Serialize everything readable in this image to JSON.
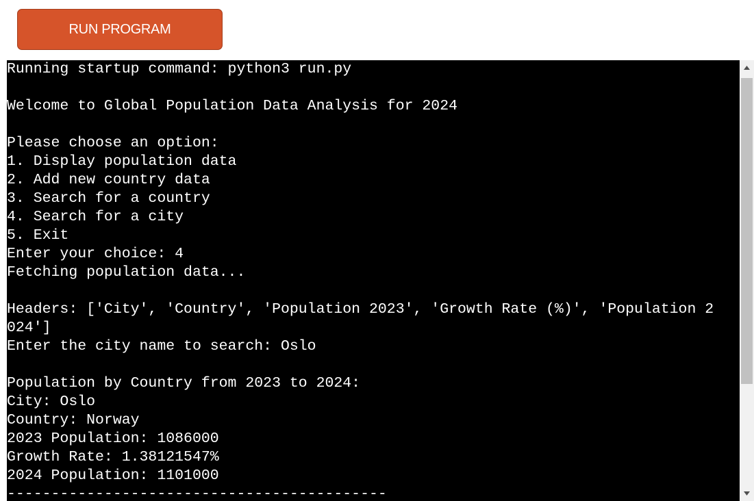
{
  "run_button": {
    "label": "RUN PROGRAM"
  },
  "terminal": {
    "lines": [
      "Running startup command: python3 run.py",
      "",
      "Welcome to Global Population Data Analysis for 2024",
      "",
      "Please choose an option:",
      "1. Display population data",
      "2. Add new country data",
      "3. Search for a country",
      "4. Search for a city",
      "5. Exit",
      "Enter your choice: 4",
      "Fetching population data...",
      "",
      "Headers: ['City', 'Country', 'Population 2023', 'Growth Rate (%)', 'Population 2",
      "024']",
      "Enter the city name to search: Oslo",
      "",
      "Population by Country from 2023 to 2024:",
      "City: Oslo",
      "Country: Norway",
      "2023 Population: 1086000",
      "Growth Rate: 1.38121547%",
      "2024 Population: 1101000",
      "-------------------------------------------"
    ]
  },
  "colors": {
    "button_bg": "#d6542a",
    "terminal_bg": "#000000",
    "terminal_fg": "#ffffff"
  },
  "icons": {
    "scroll_up": "scroll-up-arrow-icon",
    "scroll_down": "scroll-down-arrow-icon"
  }
}
